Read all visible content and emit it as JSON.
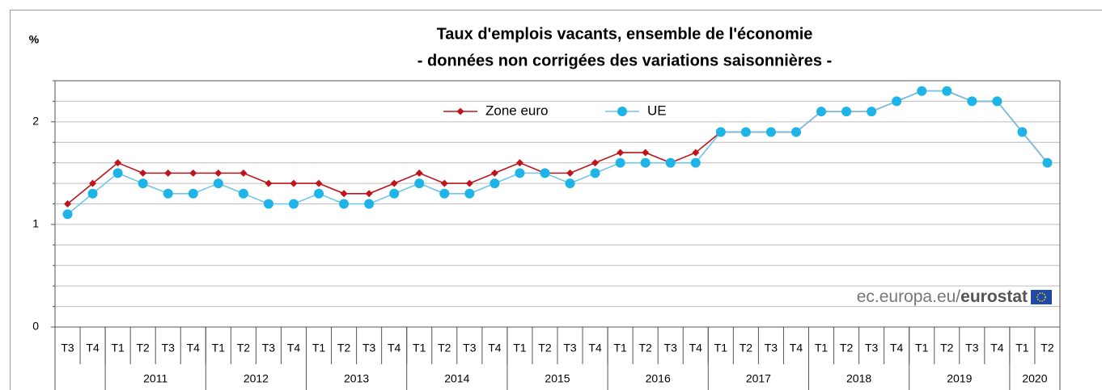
{
  "chart_data": {
    "type": "line",
    "title": "Taux d'emplois vacants, ensemble de l'économie",
    "subtitle": "- données non corrigées des variations saisonnières -",
    "y_label": "%",
    "source": "ec.europa.eu/",
    "source_bold": "eurostat",
    "groups": [
      {
        "label": null,
        "categories": [
          "T3",
          "T4"
        ]
      },
      {
        "label": "2011",
        "categories": [
          "T1",
          "T2",
          "T3",
          "T4"
        ]
      },
      {
        "label": "2012",
        "categories": [
          "T1",
          "T2",
          "T3",
          "T4"
        ]
      },
      {
        "label": "2013",
        "categories": [
          "T1",
          "T2",
          "T3",
          "T4"
        ]
      },
      {
        "label": "2014",
        "categories": [
          "T1",
          "T2",
          "T3",
          "T4"
        ]
      },
      {
        "label": "2015",
        "categories": [
          "T1",
          "T2",
          "T3",
          "T4"
        ]
      },
      {
        "label": "2016",
        "categories": [
          "T1",
          "T2",
          "T3",
          "T4"
        ]
      },
      {
        "label": "2017",
        "categories": [
          "T1",
          "T2",
          "T3",
          "T4"
        ]
      },
      {
        "label": "2018",
        "categories": [
          "T1",
          "T2",
          "T3",
          "T4"
        ]
      },
      {
        "label": "2019",
        "categories": [
          "T1",
          "T2",
          "T3",
          "T4"
        ]
      },
      {
        "label": "2020",
        "categories": [
          "T1",
          "T2"
        ]
      }
    ],
    "series": [
      {
        "name": "Zone euro",
        "color": "#c0141c",
        "marker": "diamond",
        "values": [
          1.2,
          1.4,
          1.6,
          1.5,
          1.5,
          1.5,
          1.5,
          1.5,
          1.4,
          1.4,
          1.4,
          1.3,
          1.3,
          1.4,
          1.5,
          1.4,
          1.4,
          1.5,
          1.6,
          1.5,
          1.5,
          1.6,
          1.7,
          1.7,
          1.6,
          1.7,
          1.9,
          1.9,
          1.9,
          1.9,
          2.1,
          2.1,
          2.1,
          2.2,
          2.3,
          2.3,
          2.2,
          2.2,
          1.9,
          1.6
        ]
      },
      {
        "name": "UE",
        "color": "#1fb4e8",
        "marker": "circle",
        "values": [
          1.1,
          1.3,
          1.5,
          1.4,
          1.3,
          1.3,
          1.4,
          1.3,
          1.2,
          1.2,
          1.3,
          1.2,
          1.2,
          1.3,
          1.4,
          1.3,
          1.3,
          1.4,
          1.5,
          1.5,
          1.4,
          1.5,
          1.6,
          1.6,
          1.6,
          1.6,
          1.9,
          1.9,
          1.9,
          1.9,
          2.1,
          2.1,
          2.1,
          2.2,
          2.3,
          2.3,
          2.2,
          2.2,
          1.9,
          1.6
        ]
      }
    ],
    "ylim": [
      0,
      2.4
    ],
    "yticks": [
      0,
      1,
      2
    ],
    "minor_yticks": [
      0.2,
      0.4,
      0.6,
      0.8,
      1.2,
      1.4,
      1.6,
      1.8,
      2.2,
      2.4
    ],
    "grid": true
  }
}
